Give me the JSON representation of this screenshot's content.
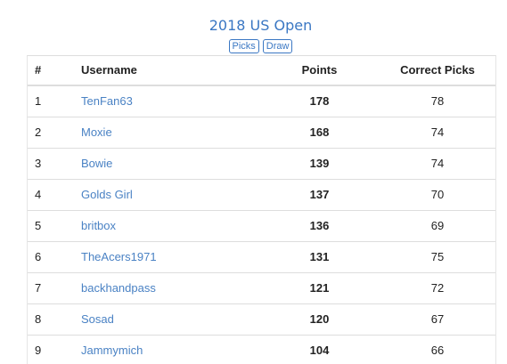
{
  "header": {
    "title": "2018 US Open",
    "links": [
      {
        "label": "Picks"
      },
      {
        "label": "Draw"
      }
    ]
  },
  "table": {
    "columns": {
      "rank": "#",
      "username": "Username",
      "points": "Points",
      "correct_picks": "Correct Picks"
    },
    "rows": [
      {
        "rank": "1",
        "username": "TenFan63",
        "points": "178",
        "correct_picks": "78"
      },
      {
        "rank": "2",
        "username": "Moxie",
        "points": "168",
        "correct_picks": "74"
      },
      {
        "rank": "3",
        "username": "Bowie",
        "points": "139",
        "correct_picks": "74"
      },
      {
        "rank": "4",
        "username": "Golds Girl",
        "points": "137",
        "correct_picks": "70"
      },
      {
        "rank": "5",
        "username": "britbox",
        "points": "136",
        "correct_picks": "69"
      },
      {
        "rank": "6",
        "username": "TheAcers1971",
        "points": "131",
        "correct_picks": "75"
      },
      {
        "rank": "7",
        "username": "backhandpass",
        "points": "121",
        "correct_picks": "72"
      },
      {
        "rank": "8",
        "username": "Sosad",
        "points": "120",
        "correct_picks": "67"
      },
      {
        "rank": "9",
        "username": "Jammymich",
        "points": "104",
        "correct_picks": "66"
      }
    ]
  },
  "colors": {
    "accent": "#3a77c3",
    "link": "#4a82c4",
    "border": "#dddddd"
  }
}
